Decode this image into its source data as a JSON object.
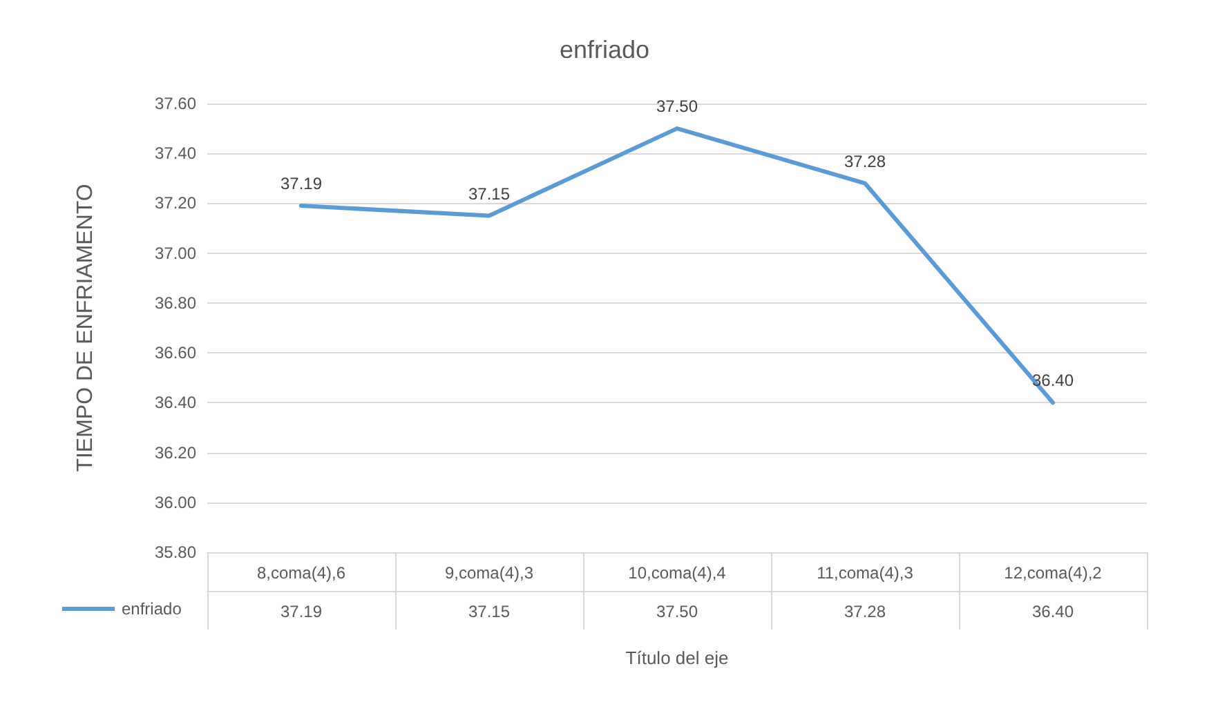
{
  "chart_data": {
    "type": "line",
    "title": "enfriado",
    "xlabel": "Título del eje",
    "ylabel": "TIEMPO DE ENFRIAMENTO",
    "categories": [
      "8,coma(4),6",
      "9,coma(4),3",
      "10,coma(4),4",
      "11,coma(4),3",
      "12,coma(4),2"
    ],
    "series": [
      {
        "name": "enfriado",
        "color": "#5b9bd5",
        "values": [
          37.19,
          37.15,
          37.5,
          37.28,
          36.4
        ],
        "value_labels": [
          "37.19",
          "37.15",
          "37.50",
          "37.28",
          "36.40"
        ]
      }
    ],
    "ylim": [
      35.8,
      37.6
    ],
    "yticks": [
      {
        "value": 35.8,
        "label": "35.80"
      },
      {
        "value": 36.0,
        "label": "36.00"
      },
      {
        "value": 36.2,
        "label": "36.20"
      },
      {
        "value": 36.4,
        "label": "36.40"
      },
      {
        "value": 36.6,
        "label": "36.60"
      },
      {
        "value": 36.8,
        "label": "36.80"
      },
      {
        "value": 37.0,
        "label": "37.00"
      },
      {
        "value": 37.2,
        "label": "37.20"
      },
      {
        "value": 37.4,
        "label": "37.40"
      },
      {
        "value": 37.6,
        "label": "37.60"
      }
    ],
    "grid": "y",
    "legend": "bottom left",
    "marker": "none",
    "line_style": "solid"
  }
}
